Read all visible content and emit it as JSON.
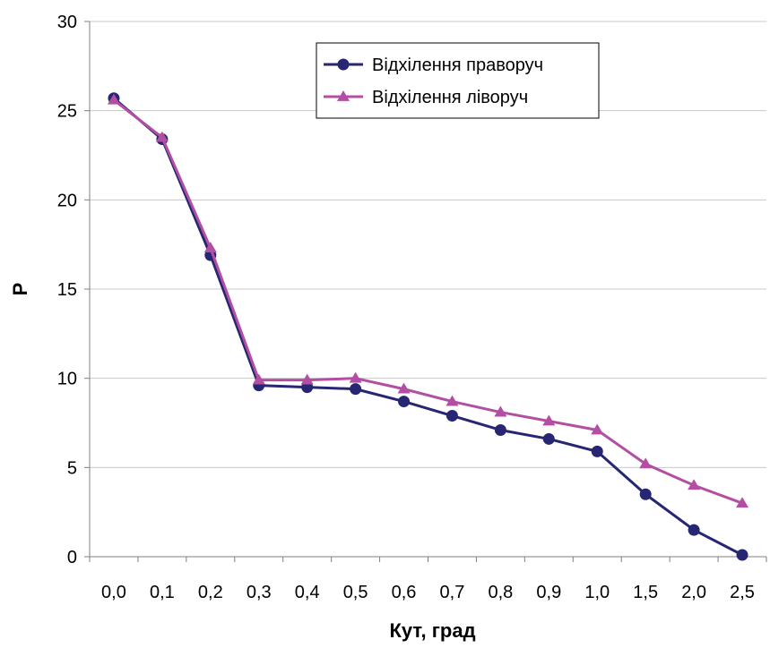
{
  "chart_data": {
    "type": "line",
    "title": "",
    "xlabel": "Кут, град",
    "ylabel": "P",
    "categories": [
      "0,0",
      "0,1",
      "0,2",
      "0,3",
      "0,4",
      "0,5",
      "0,6",
      "0,7",
      "0,8",
      "0,9",
      "1,0",
      "1,5",
      "2,0",
      "2,5"
    ],
    "ylim": [
      0,
      30
    ],
    "yticks": [
      "0",
      "5",
      "10",
      "15",
      "20",
      "25",
      "30"
    ],
    "grid": "horizontal",
    "legend_position": "top-right",
    "series": [
      {
        "name": "Відхілення праворуч",
        "marker": "circle",
        "color": "#262673",
        "values": [
          25.7,
          23.4,
          16.9,
          9.6,
          9.5,
          9.4,
          8.7,
          7.9,
          7.1,
          6.6,
          5.9,
          3.5,
          1.5,
          0.1
        ]
      },
      {
        "name": "Відхілення ліворуч",
        "marker": "triangle",
        "color": "#b34fa3",
        "values": [
          25.6,
          23.5,
          17.3,
          9.9,
          9.9,
          10.0,
          9.4,
          8.7,
          8.1,
          7.6,
          7.1,
          5.2,
          4.0,
          3.0
        ]
      }
    ]
  }
}
